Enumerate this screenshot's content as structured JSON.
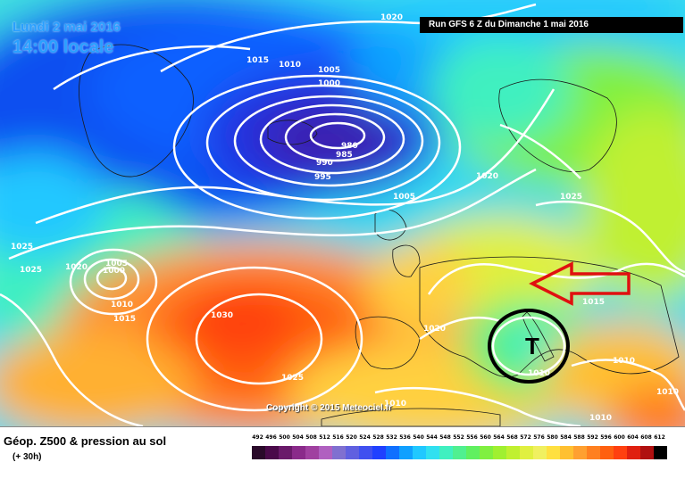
{
  "map": {
    "date_line": "Lundi 2 mai 2016",
    "time_line": "14:00 locale",
    "run_info": "Run GFS 6 Z du Dimanche 1 mai 2016",
    "copyright": "Copyright © 2015 Meteociel.fr",
    "low_symbol": "T",
    "isobar_labels": [
      "1020",
      "1015",
      "1010",
      "1005",
      "1000",
      "980",
      "985",
      "990",
      "995",
      "1005",
      "1020",
      "1025",
      "1025",
      "1025",
      "1020",
      "1005",
      "1000",
      "1010",
      "1015",
      "1030",
      "1025",
      "1020",
      "1015",
      "1010",
      "1010",
      "1010",
      "1010",
      "1010"
    ],
    "colors": {
      "ring": "#000000",
      "arrow": "#e01010",
      "isobar": "#ffffff"
    }
  },
  "legend": {
    "title": "Géop. Z500 & pression au sol",
    "subtitle": "(+ 30h)",
    "scale_labels": [
      "492",
      "496",
      "500",
      "504",
      "508",
      "512",
      "516",
      "520",
      "524",
      "528",
      "532",
      "536",
      "540",
      "544",
      "548",
      "552",
      "556",
      "560",
      "564",
      "568",
      "572",
      "576",
      "580",
      "584",
      "588",
      "592",
      "596",
      "600",
      "604",
      "608",
      "612"
    ],
    "scale_colors": [
      "#2a0a2a",
      "#4a0a4a",
      "#6a1a6a",
      "#8a2a8a",
      "#a040a0",
      "#b060c0",
      "#8070d0",
      "#6060e0",
      "#4050f0",
      "#2040ff",
      "#1070ff",
      "#10a0ff",
      "#20c8ff",
      "#30e0f0",
      "#40f0c0",
      "#50f090",
      "#60f060",
      "#80f040",
      "#a0f030",
      "#c0f030",
      "#e0f040",
      "#f0f060",
      "#ffe040",
      "#ffc030",
      "#ffa030",
      "#ff8020",
      "#ff6010",
      "#ff4010",
      "#e02010",
      "#b01010",
      "#000000"
    ]
  }
}
